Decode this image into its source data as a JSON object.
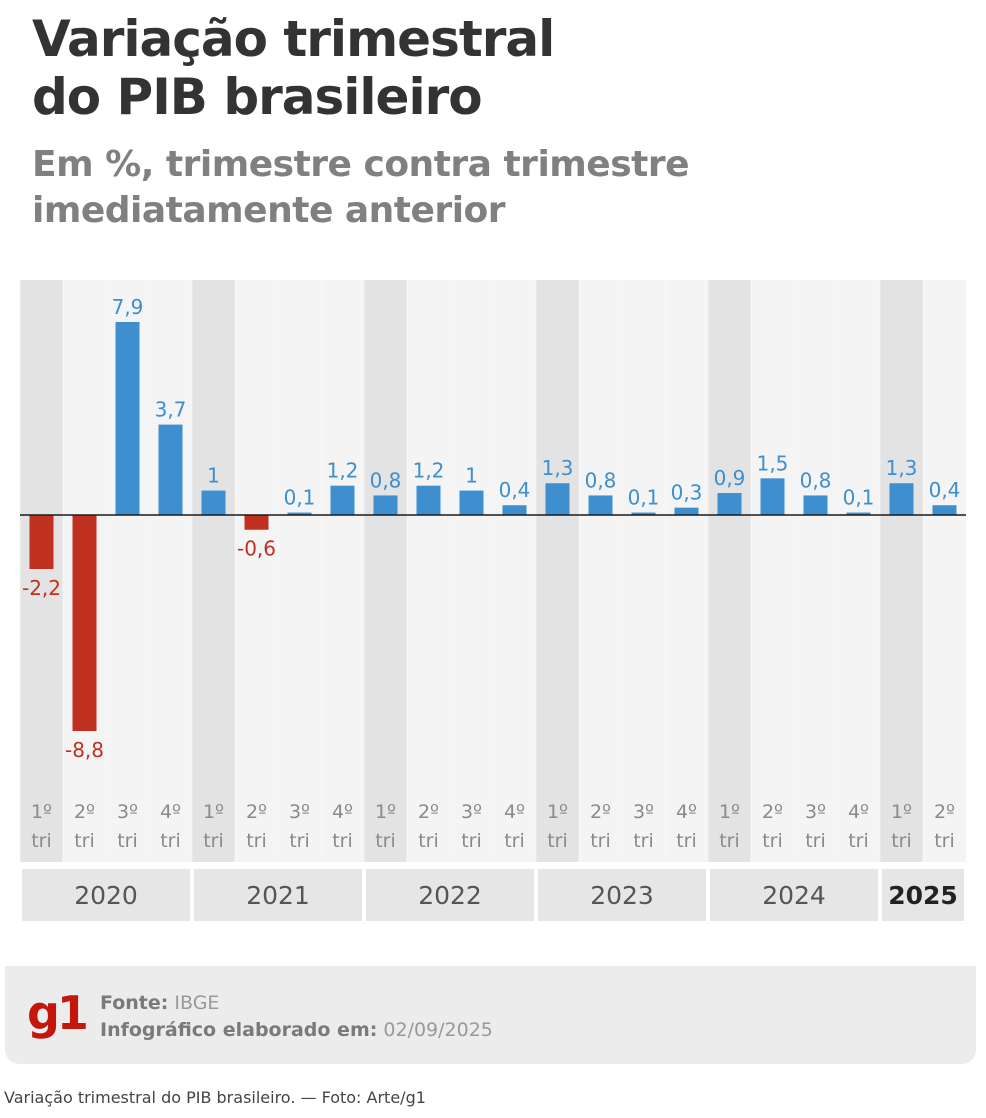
{
  "chart_data": {
    "type": "bar",
    "title": "Variação trimestral do PIB brasileiro",
    "subtitle": "Em %, trimestre contra trimestre imediatamente anterior",
    "years": [
      "2020",
      "2021",
      "2022",
      "2023",
      "2024",
      "2025"
    ],
    "categories": [
      {
        "q": "1º",
        "t": "tri",
        "year": "2020"
      },
      {
        "q": "2º",
        "t": "tri",
        "year": "2020"
      },
      {
        "q": "3º",
        "t": "tri",
        "year": "2020"
      },
      {
        "q": "4º",
        "t": "tri",
        "year": "2020"
      },
      {
        "q": "1º",
        "t": "tri",
        "year": "2021"
      },
      {
        "q": "2º",
        "t": "tri",
        "year": "2021"
      },
      {
        "q": "3º",
        "t": "tri",
        "year": "2021"
      },
      {
        "q": "4º",
        "t": "tri",
        "year": "2021"
      },
      {
        "q": "1º",
        "t": "tri",
        "year": "2022"
      },
      {
        "q": "2º",
        "t": "tri",
        "year": "2022"
      },
      {
        "q": "3º",
        "t": "tri",
        "year": "2022"
      },
      {
        "q": "4º",
        "t": "tri",
        "year": "2022"
      },
      {
        "q": "1º",
        "t": "tri",
        "year": "2023"
      },
      {
        "q": "2º",
        "t": "tri",
        "year": "2023"
      },
      {
        "q": "3º",
        "t": "tri",
        "year": "2023"
      },
      {
        "q": "4º",
        "t": "tri",
        "year": "2023"
      },
      {
        "q": "1º",
        "t": "tri",
        "year": "2024"
      },
      {
        "q": "2º",
        "t": "tri",
        "year": "2024"
      },
      {
        "q": "3º",
        "t": "tri",
        "year": "2024"
      },
      {
        "q": "4º",
        "t": "tri",
        "year": "2024"
      },
      {
        "q": "1º",
        "t": "tri",
        "year": "2025"
      },
      {
        "q": "2º",
        "t": "tri",
        "year": "2025"
      }
    ],
    "values": [
      -2.2,
      -8.8,
      7.9,
      3.7,
      1,
      -0.6,
      0.1,
      1.2,
      0.8,
      1.2,
      1,
      0.4,
      1.3,
      0.8,
      0.1,
      0.3,
      0.9,
      1.5,
      0.8,
      0.1,
      1.3,
      0.4
    ],
    "value_labels": [
      "-2,2",
      "-8,8",
      "7,9",
      "3,7",
      "1",
      "-0,6",
      "0,1",
      "1,2",
      "0,8",
      "1,2",
      "1",
      "0,4",
      "1,3",
      "0,8",
      "0,1",
      "0,3",
      "0,9",
      "1,5",
      "0,8",
      "0,1",
      "1,3",
      "0,4"
    ],
    "highlight_year": "2025",
    "ylim": [
      -8.8,
      7.9
    ],
    "colors": {
      "positive": "#3d8fcf",
      "negative": "#c0301f",
      "axis": "#1a1a1a"
    }
  },
  "title_lines": [
    "Variação trimestral",
    "do PIB brasileiro"
  ],
  "subtitle_lines": [
    "Em %, trimestre contra trimestre",
    "imediatamente anterior"
  ],
  "footer": {
    "logo": "g1",
    "source_label": "Fonte:",
    "source_value": "IBGE",
    "date_label": "Infográfico elaborado em:",
    "date_value": "02/09/2025"
  },
  "caption": "Variação trimestral do PIB brasileiro. — Foto: Arte/g1"
}
